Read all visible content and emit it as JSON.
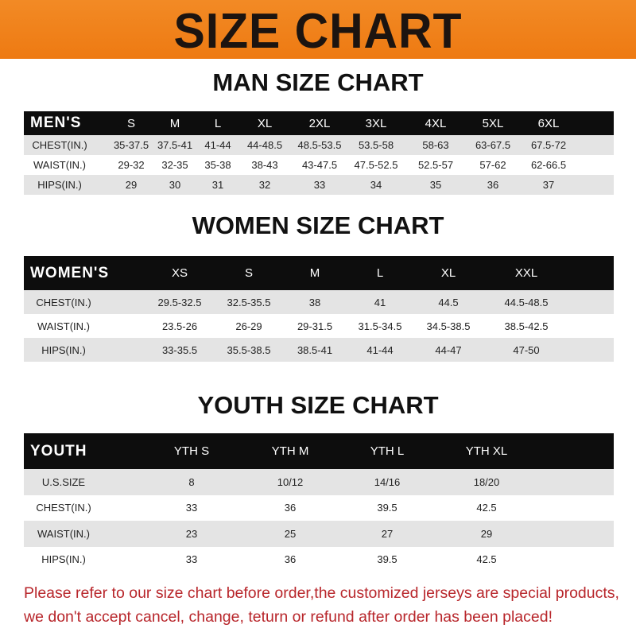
{
  "title": "SIZE CHART",
  "colors": {
    "banner": "#f0821a",
    "header_row": "#0d0d0d",
    "note": "#b8262b"
  },
  "men": {
    "title": "MAN SIZE CHART",
    "header": [
      "MEN'S",
      "S",
      "M",
      "L",
      "XL",
      "2XL",
      "3XL",
      "4XL",
      "5XL",
      "6XL"
    ],
    "rows": [
      [
        "CHEST(IN.)",
        "35-37.5",
        "37.5-41",
        "41-44",
        "44-48.5",
        "48.5-53.5",
        "53.5-58",
        "58-63",
        "63-67.5",
        "67.5-72"
      ],
      [
        "WAIST(IN.)",
        "29-32",
        "32-35",
        "35-38",
        "38-43",
        "43-47.5",
        "47.5-52.5",
        "52.5-57",
        "57-62",
        "62-66.5"
      ],
      [
        "HIPS(IN.)",
        "29",
        "30",
        "31",
        "32",
        "33",
        "34",
        "35",
        "36",
        "37"
      ]
    ]
  },
  "women": {
    "title": "WOMEN SIZE CHART",
    "header": [
      "WOMEN'S",
      "XS",
      "S",
      "M",
      "L",
      "XL",
      "XXL"
    ],
    "rows": [
      [
        "CHEST(IN.)",
        "29.5-32.5",
        "32.5-35.5",
        "38",
        "41",
        "44.5",
        "44.5-48.5"
      ],
      [
        "WAIST(IN.)",
        "23.5-26",
        "26-29",
        "29-31.5",
        "31.5-34.5",
        "34.5-38.5",
        "38.5-42.5"
      ],
      [
        "HIPS(IN.)",
        "33-35.5",
        "35.5-38.5",
        "38.5-41",
        "41-44",
        "44-47",
        "47-50"
      ]
    ]
  },
  "youth": {
    "title": "YOUTH SIZE CHART",
    "header": [
      "YOUTH",
      "YTH S",
      "YTH M",
      "YTH L",
      "YTH XL"
    ],
    "rows": [
      [
        "U.S.SIZE",
        "8",
        "10/12",
        "14/16",
        "18/20"
      ],
      [
        "CHEST(IN.)",
        "33",
        "36",
        "39.5",
        "42.5"
      ],
      [
        "WAIST(IN.)",
        "23",
        "25",
        "27",
        "29"
      ],
      [
        "HIPS(IN.)",
        "33",
        "36",
        "39.5",
        "42.5"
      ]
    ]
  },
  "note": {
    "line1": "Please refer to our size chart before order,the customized jerseys are special products,",
    "line2": "we don't accept cancel, change, teturn or refund after order has been placed!"
  }
}
